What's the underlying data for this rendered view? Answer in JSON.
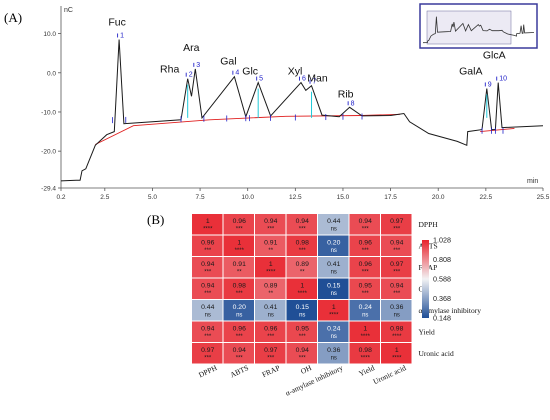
{
  "panel_labels": {
    "a": "(A)",
    "b": "(B)"
  },
  "chromatogram": {
    "y_unit": "nC",
    "x_unit": "min",
    "y_ticks": [
      "10.0",
      "0.0",
      "-10.0",
      "-20.0",
      "-29.4"
    ],
    "x_ticks": [
      "0.2",
      "2.5",
      "5.0",
      "7.5",
      "10.0",
      "12.5",
      "15.0",
      "17.5",
      "20.0",
      "22.5",
      "25.5"
    ],
    "peaks": [
      {
        "name": "Fuc",
        "num": "1",
        "t": 3.25,
        "h": 8.5
      },
      {
        "name": "Rha",
        "num": "2",
        "t": 6.85,
        "h": -1.5
      },
      {
        "name": "Ara",
        "num": "3",
        "t": 7.25,
        "h": 1.0
      },
      {
        "name": "Gal",
        "num": "4",
        "t": 9.3,
        "h": -1.0
      },
      {
        "name": "Glc",
        "num": "5",
        "t": 10.55,
        "h": -2.5
      },
      {
        "name": "Xyl",
        "num": "6",
        "t": 12.8,
        "h": -2.5
      },
      {
        "name": "Man",
        "num": "7",
        "t": 13.35,
        "h": -3.3
      },
      {
        "name": "Rib",
        "num": "8",
        "t": 15.35,
        "h": -8.8
      },
      {
        "name": "GalA",
        "num": "9",
        "t": 22.55,
        "h": -4.0
      },
      {
        "name": "GlcA",
        "num": "10",
        "t": 23.15,
        "h": -2.5
      }
    ]
  },
  "chart_data": [
    {
      "type": "line",
      "y_unit": "nC",
      "x_unit": "min",
      "xlim": [
        0.2,
        25.5
      ],
      "ylim": [
        -29.4,
        15
      ],
      "series": [
        {
          "values": [
            [
              0.2,
              -27.6
            ],
            [
              1.0,
              -27.4
            ],
            [
              1.2,
              -27.4
            ],
            [
              1.3,
              -25.0
            ],
            [
              1.5,
              -24.5
            ],
            [
              2.0,
              -18.5
            ],
            [
              2.6,
              -15.8
            ],
            [
              3.0,
              -15.0
            ],
            [
              3.25,
              8.5
            ],
            [
              3.5,
              -13.0
            ],
            [
              5.0,
              -12.5
            ],
            [
              6.5,
              -12.0
            ],
            [
              6.85,
              -1.5
            ],
            [
              7.05,
              -6.0
            ],
            [
              7.25,
              1.0
            ],
            [
              7.6,
              -11.5
            ],
            [
              9.3,
              -1.0
            ],
            [
              9.9,
              -11.2
            ],
            [
              10.55,
              -2.5
            ],
            [
              11.2,
              -11.0
            ],
            [
              12.8,
              -2.5
            ],
            [
              13.05,
              -4.5
            ],
            [
              13.35,
              -3.3
            ],
            [
              13.9,
              -10.8
            ],
            [
              14.8,
              -11.2
            ],
            [
              15.35,
              -8.8
            ],
            [
              16.0,
              -11.0
            ],
            [
              17.5,
              -10.9
            ],
            [
              18.2,
              -10.4
            ],
            [
              18.5,
              -12.5
            ],
            [
              19.5,
              -15.5
            ],
            [
              21.0,
              -17.5
            ],
            [
              21.5,
              -18.5
            ],
            [
              21.55,
              -15.0
            ],
            [
              22.3,
              -14.5
            ],
            [
              22.55,
              -4.0
            ],
            [
              22.8,
              -14.5
            ],
            [
              23.0,
              -14.5
            ],
            [
              23.15,
              -2.5
            ],
            [
              23.35,
              -14.0
            ],
            [
              25.5,
              -13.5
            ]
          ]
        }
      ]
    },
    {
      "type": "heatmap",
      "rows": [
        "DPPH",
        "ABTS",
        "FRAP",
        "OH",
        "α-amylase inhibitory",
        "Yield",
        "Uronic acid"
      ],
      "cols": [
        "DPPH",
        "ABTS",
        "FRAP",
        "OH",
        "α-amylase inhibitory",
        "Yield",
        "Uronic acid"
      ],
      "values": [
        [
          1,
          0.96,
          0.94,
          0.94,
          0.44,
          0.94,
          0.97
        ],
        [
          0.96,
          1,
          0.91,
          0.98,
          0.2,
          0.96,
          0.94
        ],
        [
          0.94,
          0.91,
          1,
          0.89,
          0.41,
          0.96,
          0.97
        ],
        [
          0.94,
          0.98,
          0.89,
          1,
          0.15,
          0.95,
          0.94
        ],
        [
          0.44,
          0.2,
          0.41,
          0.15,
          1,
          0.24,
          0.36
        ],
        [
          0.94,
          0.96,
          0.96,
          0.95,
          0.24,
          1,
          0.98
        ],
        [
          0.97,
          0.94,
          0.97,
          0.94,
          0.36,
          0.98,
          1
        ]
      ],
      "sig": [
        [
          "****",
          "***",
          "***",
          "***",
          "ns",
          "***",
          "***"
        ],
        [
          "***",
          "****",
          "**",
          "***",
          "ns",
          "***",
          "***"
        ],
        [
          "***",
          "**",
          "****",
          "**",
          "ns",
          "***",
          "***"
        ],
        [
          "***",
          "***",
          "**",
          "****",
          "ns",
          "***",
          "***"
        ],
        [
          "ns",
          "ns",
          "ns",
          "ns",
          "****",
          "ns",
          "ns"
        ],
        [
          "***",
          "***",
          "***",
          "***",
          "ns",
          "****",
          "****"
        ],
        [
          "***",
          "***",
          "***",
          "***",
          "ns",
          "****",
          "****"
        ]
      ],
      "legend": {
        "ticks": [
          "1.028",
          "0.808",
          "0.588",
          "0.368",
          "0.148"
        ],
        "max": 1.028,
        "min": 0.148
      }
    }
  ],
  "colors": {
    "high": "#e8232c",
    "mid": "#f2f2f4",
    "low": "#1f4e96",
    "signal": "#1a1a1a",
    "baseline": "#e02020",
    "marker": "#2020c8",
    "window": "#3a3a9c"
  }
}
